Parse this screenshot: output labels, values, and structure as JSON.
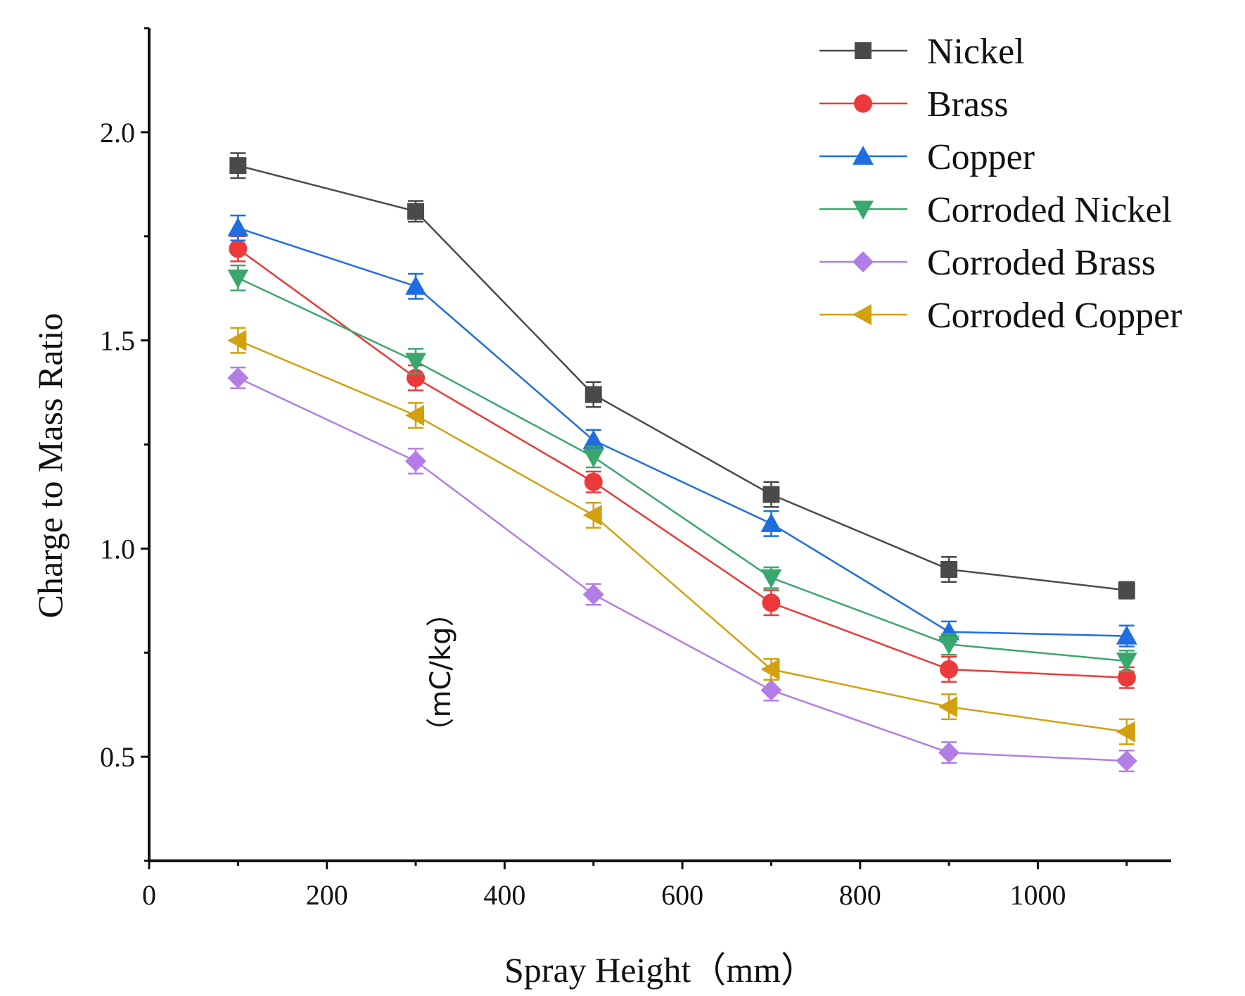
{
  "chart_data": {
    "type": "line",
    "title": "",
    "xlabel": "Spray Height（mm）",
    "ylabel": "Charge to Mass Ratio",
    "ylabel_unit": "（mC/kg）",
    "xlim": [
      0,
      1150
    ],
    "ylim": [
      0.25,
      2.25
    ],
    "x_ticks": [
      0,
      200,
      400,
      600,
      800,
      1000
    ],
    "x_tick_labels": [
      "0",
      "200",
      "400",
      "600",
      "800",
      "1000"
    ],
    "y_ticks": [
      0.5,
      1.0,
      1.5,
      2.0
    ],
    "y_tick_labels": [
      "0.5",
      "1.0",
      "1.5",
      "2.0"
    ],
    "legend_position": "top-right",
    "x": [
      100,
      300,
      500,
      700,
      900,
      1100
    ],
    "series": [
      {
        "name": "Nickel",
        "color": "#4a4a4a",
        "marker": "square",
        "values": [
          1.92,
          1.81,
          1.37,
          1.13,
          0.95,
          0.9
        ],
        "errors": [
          0.03,
          0.025,
          0.03,
          0.03,
          0.03,
          0.02
        ]
      },
      {
        "name": "Brass",
        "color": "#ec3939",
        "marker": "circle",
        "values": [
          1.72,
          1.41,
          1.16,
          0.87,
          0.71,
          0.69
        ],
        "errors": [
          0.03,
          0.03,
          0.025,
          0.03,
          0.03,
          0.025
        ]
      },
      {
        "name": "Copper",
        "color": "#1f6ee0",
        "marker": "triangle-up",
        "values": [
          1.77,
          1.63,
          1.26,
          1.06,
          0.8,
          0.79
        ],
        "errors": [
          0.03,
          0.03,
          0.025,
          0.03,
          0.025,
          0.025
        ]
      },
      {
        "name": "Corroded Nickel",
        "color": "#3aa76d",
        "marker": "triangle-down",
        "values": [
          1.65,
          1.45,
          1.22,
          0.93,
          0.77,
          0.73
        ],
        "errors": [
          0.03,
          0.03,
          0.025,
          0.025,
          0.025,
          0.025
        ]
      },
      {
        "name": "Corroded Brass",
        "color": "#b27ee6",
        "marker": "diamond",
        "values": [
          1.41,
          1.21,
          0.89,
          0.66,
          0.51,
          0.49
        ],
        "errors": [
          0.025,
          0.03,
          0.025,
          0.025,
          0.025,
          0.025
        ]
      },
      {
        "name": "Corroded Copper",
        "color": "#d3a010",
        "marker": "triangle-left",
        "values": [
          1.5,
          1.32,
          1.08,
          0.71,
          0.62,
          0.56
        ],
        "errors": [
          0.03,
          0.03,
          0.03,
          0.025,
          0.03,
          0.03
        ]
      }
    ]
  }
}
